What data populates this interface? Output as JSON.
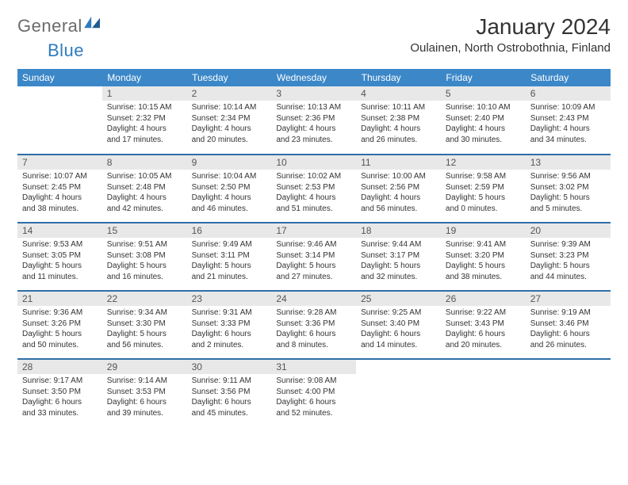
{
  "logo": {
    "text_general": "General",
    "text_blue": "Blue"
  },
  "header": {
    "month_title": "January 2024",
    "location": "Oulainen, North Ostrobothnia, Finland"
  },
  "colors": {
    "header_bg": "#3b87c8",
    "header_text": "#ffffff",
    "row_border": "#2f6fa8",
    "daynum_bg": "#e8e8e8",
    "logo_gray": "#6b6b6b",
    "logo_blue": "#2f7bbf"
  },
  "day_headers": [
    "Sunday",
    "Monday",
    "Tuesday",
    "Wednesday",
    "Thursday",
    "Friday",
    "Saturday"
  ],
  "weeks": [
    [
      null,
      {
        "n": "1",
        "sr": "Sunrise: 10:15 AM",
        "ss": "Sunset: 2:32 PM",
        "d1": "Daylight: 4 hours",
        "d2": "and 17 minutes."
      },
      {
        "n": "2",
        "sr": "Sunrise: 10:14 AM",
        "ss": "Sunset: 2:34 PM",
        "d1": "Daylight: 4 hours",
        "d2": "and 20 minutes."
      },
      {
        "n": "3",
        "sr": "Sunrise: 10:13 AM",
        "ss": "Sunset: 2:36 PM",
        "d1": "Daylight: 4 hours",
        "d2": "and 23 minutes."
      },
      {
        "n": "4",
        "sr": "Sunrise: 10:11 AM",
        "ss": "Sunset: 2:38 PM",
        "d1": "Daylight: 4 hours",
        "d2": "and 26 minutes."
      },
      {
        "n": "5",
        "sr": "Sunrise: 10:10 AM",
        "ss": "Sunset: 2:40 PM",
        "d1": "Daylight: 4 hours",
        "d2": "and 30 minutes."
      },
      {
        "n": "6",
        "sr": "Sunrise: 10:09 AM",
        "ss": "Sunset: 2:43 PM",
        "d1": "Daylight: 4 hours",
        "d2": "and 34 minutes."
      }
    ],
    [
      {
        "n": "7",
        "sr": "Sunrise: 10:07 AM",
        "ss": "Sunset: 2:45 PM",
        "d1": "Daylight: 4 hours",
        "d2": "and 38 minutes."
      },
      {
        "n": "8",
        "sr": "Sunrise: 10:05 AM",
        "ss": "Sunset: 2:48 PM",
        "d1": "Daylight: 4 hours",
        "d2": "and 42 minutes."
      },
      {
        "n": "9",
        "sr": "Sunrise: 10:04 AM",
        "ss": "Sunset: 2:50 PM",
        "d1": "Daylight: 4 hours",
        "d2": "and 46 minutes."
      },
      {
        "n": "10",
        "sr": "Sunrise: 10:02 AM",
        "ss": "Sunset: 2:53 PM",
        "d1": "Daylight: 4 hours",
        "d2": "and 51 minutes."
      },
      {
        "n": "11",
        "sr": "Sunrise: 10:00 AM",
        "ss": "Sunset: 2:56 PM",
        "d1": "Daylight: 4 hours",
        "d2": "and 56 minutes."
      },
      {
        "n": "12",
        "sr": "Sunrise: 9:58 AM",
        "ss": "Sunset: 2:59 PM",
        "d1": "Daylight: 5 hours",
        "d2": "and 0 minutes."
      },
      {
        "n": "13",
        "sr": "Sunrise: 9:56 AM",
        "ss": "Sunset: 3:02 PM",
        "d1": "Daylight: 5 hours",
        "d2": "and 5 minutes."
      }
    ],
    [
      {
        "n": "14",
        "sr": "Sunrise: 9:53 AM",
        "ss": "Sunset: 3:05 PM",
        "d1": "Daylight: 5 hours",
        "d2": "and 11 minutes."
      },
      {
        "n": "15",
        "sr": "Sunrise: 9:51 AM",
        "ss": "Sunset: 3:08 PM",
        "d1": "Daylight: 5 hours",
        "d2": "and 16 minutes."
      },
      {
        "n": "16",
        "sr": "Sunrise: 9:49 AM",
        "ss": "Sunset: 3:11 PM",
        "d1": "Daylight: 5 hours",
        "d2": "and 21 minutes."
      },
      {
        "n": "17",
        "sr": "Sunrise: 9:46 AM",
        "ss": "Sunset: 3:14 PM",
        "d1": "Daylight: 5 hours",
        "d2": "and 27 minutes."
      },
      {
        "n": "18",
        "sr": "Sunrise: 9:44 AM",
        "ss": "Sunset: 3:17 PM",
        "d1": "Daylight: 5 hours",
        "d2": "and 32 minutes."
      },
      {
        "n": "19",
        "sr": "Sunrise: 9:41 AM",
        "ss": "Sunset: 3:20 PM",
        "d1": "Daylight: 5 hours",
        "d2": "and 38 minutes."
      },
      {
        "n": "20",
        "sr": "Sunrise: 9:39 AM",
        "ss": "Sunset: 3:23 PM",
        "d1": "Daylight: 5 hours",
        "d2": "and 44 minutes."
      }
    ],
    [
      {
        "n": "21",
        "sr": "Sunrise: 9:36 AM",
        "ss": "Sunset: 3:26 PM",
        "d1": "Daylight: 5 hours",
        "d2": "and 50 minutes."
      },
      {
        "n": "22",
        "sr": "Sunrise: 9:34 AM",
        "ss": "Sunset: 3:30 PM",
        "d1": "Daylight: 5 hours",
        "d2": "and 56 minutes."
      },
      {
        "n": "23",
        "sr": "Sunrise: 9:31 AM",
        "ss": "Sunset: 3:33 PM",
        "d1": "Daylight: 6 hours",
        "d2": "and 2 minutes."
      },
      {
        "n": "24",
        "sr": "Sunrise: 9:28 AM",
        "ss": "Sunset: 3:36 PM",
        "d1": "Daylight: 6 hours",
        "d2": "and 8 minutes."
      },
      {
        "n": "25",
        "sr": "Sunrise: 9:25 AM",
        "ss": "Sunset: 3:40 PM",
        "d1": "Daylight: 6 hours",
        "d2": "and 14 minutes."
      },
      {
        "n": "26",
        "sr": "Sunrise: 9:22 AM",
        "ss": "Sunset: 3:43 PM",
        "d1": "Daylight: 6 hours",
        "d2": "and 20 minutes."
      },
      {
        "n": "27",
        "sr": "Sunrise: 9:19 AM",
        "ss": "Sunset: 3:46 PM",
        "d1": "Daylight: 6 hours",
        "d2": "and 26 minutes."
      }
    ],
    [
      {
        "n": "28",
        "sr": "Sunrise: 9:17 AM",
        "ss": "Sunset: 3:50 PM",
        "d1": "Daylight: 6 hours",
        "d2": "and 33 minutes."
      },
      {
        "n": "29",
        "sr": "Sunrise: 9:14 AM",
        "ss": "Sunset: 3:53 PM",
        "d1": "Daylight: 6 hours",
        "d2": "and 39 minutes."
      },
      {
        "n": "30",
        "sr": "Sunrise: 9:11 AM",
        "ss": "Sunset: 3:56 PM",
        "d1": "Daylight: 6 hours",
        "d2": "and 45 minutes."
      },
      {
        "n": "31",
        "sr": "Sunrise: 9:08 AM",
        "ss": "Sunset: 4:00 PM",
        "d1": "Daylight: 6 hours",
        "d2": "and 52 minutes."
      },
      null,
      null,
      null
    ]
  ]
}
